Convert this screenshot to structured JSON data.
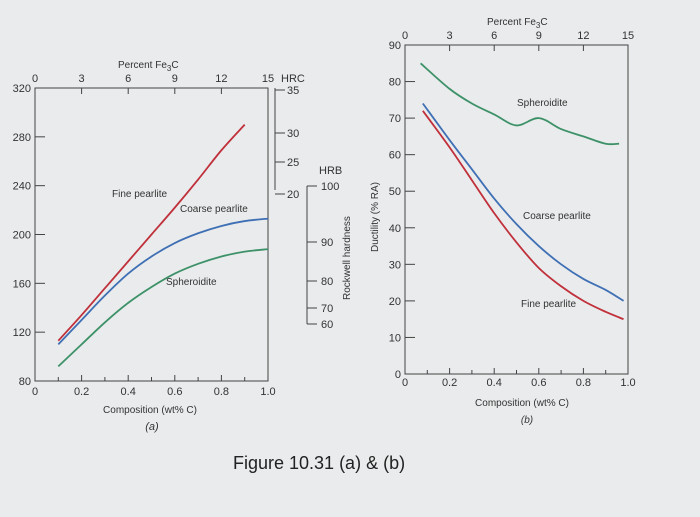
{
  "figure_caption": "Figure 10.31 (a) & (b)",
  "colors": {
    "fine": "#c0303a",
    "coarse": "#3f6fb4",
    "spher": "#3d9168",
    "background": "#e9ebec"
  },
  "chart_data": [
    {
      "type": "line",
      "panel_label": "(a)",
      "xlabel": "Composition (wt% C)",
      "x_ticks": [
        "0",
        "0.2",
        "0.4",
        "0.6",
        "0.8",
        "1.0"
      ],
      "xlim": [
        0,
        1.0
      ],
      "ylim": [
        80,
        320
      ],
      "y_ticks": [
        "80",
        "120",
        "160",
        "200",
        "240",
        "280",
        "320"
      ],
      "top_axis": {
        "label": "Percent Fe3C",
        "label_main": "Percent Fe",
        "label_sub": "3",
        "label_end": "C",
        "ticks": [
          "0",
          "3",
          "6",
          "9",
          "12",
          "15"
        ]
      },
      "hrc_axis": {
        "label": "HRC",
        "ticks": [
          "35",
          "30",
          "25",
          "20"
        ]
      },
      "hrb_axis": {
        "label": "HRB",
        "ticks": [
          "100",
          "90",
          "80",
          "70",
          "60"
        ]
      },
      "side_label": "Rockwell hardness",
      "series": [
        {
          "name": "Fine pearlite",
          "key": "fine",
          "x": [
            0.1,
            0.2,
            0.3,
            0.4,
            0.5,
            0.6,
            0.7,
            0.8,
            0.9
          ],
          "values": [
            113,
            134,
            156,
            178,
            200,
            222,
            245,
            269,
            290
          ]
        },
        {
          "name": "Coarse pearlite",
          "key": "coarse",
          "x": [
            0.1,
            0.2,
            0.3,
            0.4,
            0.5,
            0.6,
            0.7,
            0.8,
            0.9,
            1.0
          ],
          "values": [
            110,
            130,
            150,
            168,
            182,
            193,
            201,
            207,
            211,
            213
          ]
        },
        {
          "name": "Spheroidite",
          "key": "spher",
          "x": [
            0.1,
            0.2,
            0.3,
            0.4,
            0.5,
            0.6,
            0.7,
            0.8,
            0.9,
            1.0
          ],
          "values": [
            92,
            110,
            128,
            144,
            157,
            168,
            176,
            182,
            186,
            188
          ]
        }
      ]
    },
    {
      "type": "line",
      "panel_label": "(b)",
      "xlabel": "Composition (wt% C)",
      "x_ticks": [
        "0",
        "0.2",
        "0.4",
        "0.6",
        "0.8",
        "1.0"
      ],
      "xlim": [
        0,
        1.0
      ],
      "ylim": [
        0,
        90
      ],
      "y_ticks": [
        "0",
        "10",
        "20",
        "30",
        "40",
        "50",
        "60",
        "70",
        "80",
        "90"
      ],
      "ylabel": "Ductility (% RA)",
      "top_axis": {
        "label": "Percent Fe3C",
        "label_main": "Percent Fe",
        "label_sub": "3",
        "label_end": "C",
        "ticks": [
          "0",
          "3",
          "6",
          "9",
          "12",
          "15"
        ]
      },
      "series": [
        {
          "name": "Spheroidite",
          "key": "spher",
          "x": [
            0.07,
            0.2,
            0.3,
            0.4,
            0.5,
            0.6,
            0.7,
            0.8,
            0.9,
            0.96
          ],
          "values": [
            85,
            78,
            74,
            71,
            68,
            70,
            67,
            65,
            63,
            63
          ]
        },
        {
          "name": "Coarse pearlite",
          "key": "coarse",
          "x": [
            0.08,
            0.2,
            0.3,
            0.4,
            0.5,
            0.6,
            0.7,
            0.8,
            0.9,
            0.98
          ],
          "values": [
            74,
            64,
            56,
            48,
            41,
            35,
            30,
            26,
            23,
            20
          ]
        },
        {
          "name": "Fine pearlite",
          "key": "fine",
          "x": [
            0.08,
            0.2,
            0.3,
            0.4,
            0.5,
            0.6,
            0.7,
            0.8,
            0.9,
            0.98
          ],
          "values": [
            72,
            62,
            53,
            44,
            36,
            29,
            24,
            20,
            17,
            15
          ]
        }
      ]
    }
  ]
}
